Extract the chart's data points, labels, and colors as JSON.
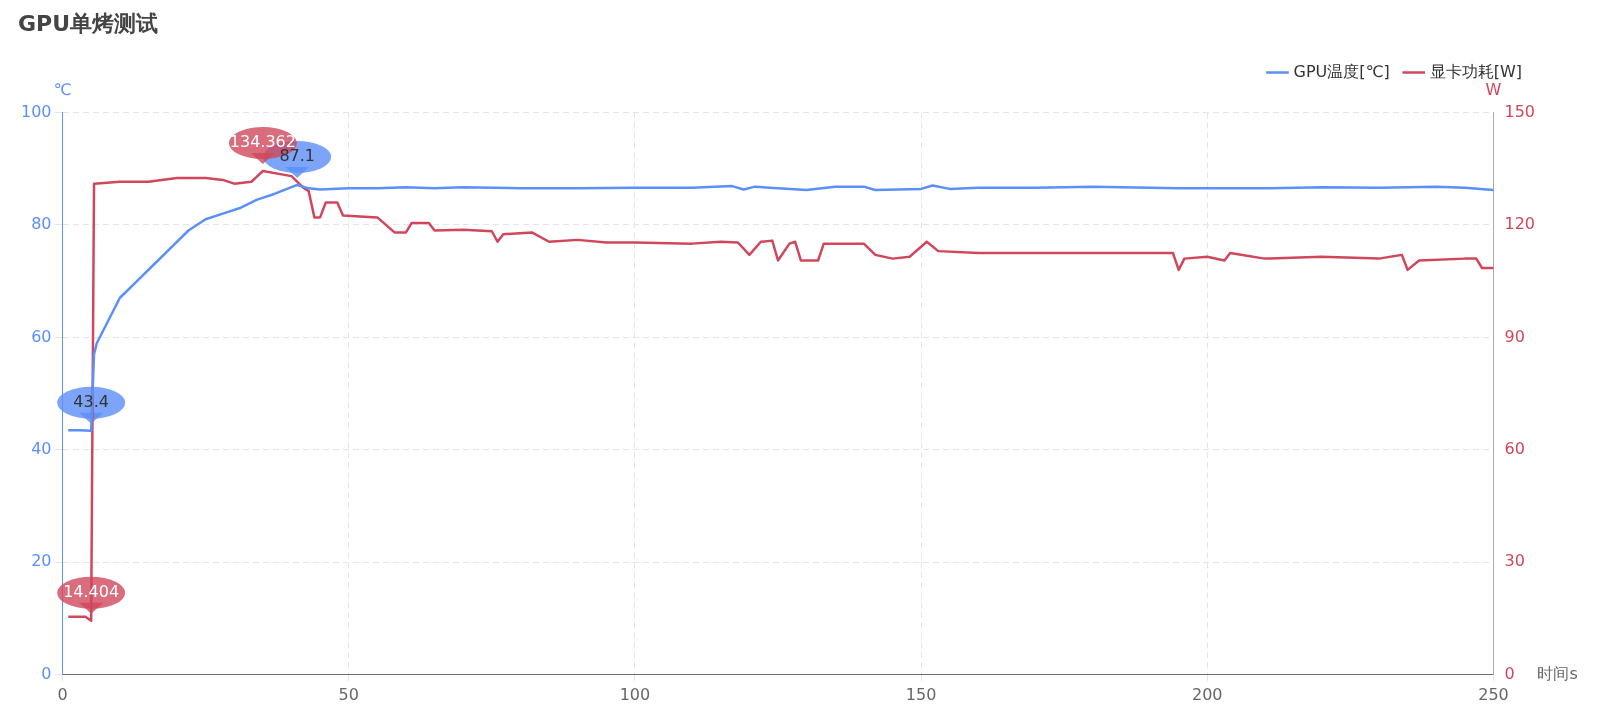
{
  "chart_data": {
    "type": "line",
    "title": "GPU单烤测试",
    "xlabel": "时间s",
    "ylabel": "℃",
    "y2label": "W",
    "xlim": [
      0,
      250
    ],
    "xticks": [
      0,
      50,
      100,
      150,
      200,
      250
    ],
    "ylim": [
      0,
      100
    ],
    "yticks": [
      0,
      20,
      40,
      60,
      80,
      100
    ],
    "y2lim": [
      0,
      150
    ],
    "y2ticks": [
      0,
      30,
      60,
      90,
      120,
      150
    ],
    "grid": true,
    "legend": "top right",
    "marker": "none",
    "line_style": "solid",
    "series": [
      {
        "name": "GPU温度[℃]",
        "color": "#5b8ff9",
        "x": [
          1,
          3,
          5,
          5.5,
          6,
          8,
          10,
          13,
          16,
          19,
          22,
          25,
          28,
          31,
          34,
          37,
          39,
          41,
          43,
          45,
          50,
          55,
          60,
          65,
          70,
          80,
          90,
          100,
          110,
          117,
          119,
          121,
          125,
          130,
          135,
          140,
          142,
          150,
          152,
          155,
          160,
          170,
          180,
          190,
          195,
          200,
          210,
          220,
          230,
          240,
          245,
          250
        ],
        "values": [
          43.5,
          43.5,
          43.4,
          57,
          59,
          63,
          67,
          70,
          73,
          76,
          79,
          81,
          82,
          83,
          84.5,
          85.5,
          86.3,
          87.1,
          86.5,
          86.3,
          86.5,
          86.5,
          86.7,
          86.5,
          86.7,
          86.5,
          86.5,
          86.6,
          86.6,
          86.9,
          86.3,
          86.8,
          86.5,
          86.2,
          86.8,
          86.8,
          86.2,
          86.4,
          87,
          86.4,
          86.6,
          86.6,
          86.8,
          86.6,
          86.5,
          86.5,
          86.5,
          86.7,
          86.6,
          86.8,
          86.6,
          86.2
        ],
        "value_labels": [
          null,
          null,
          "43.4",
          null,
          null,
          null,
          null,
          null,
          null,
          null,
          null,
          null,
          null,
          null,
          null,
          null,
          null,
          "87.1",
          null,
          null,
          null,
          null,
          null,
          null,
          null,
          null,
          null,
          null,
          null,
          null,
          null,
          null,
          null,
          null,
          null,
          null,
          null,
          null,
          null,
          null,
          null,
          null,
          null,
          null,
          null,
          null,
          null,
          null,
          null,
          null,
          null,
          null
        ]
      },
      {
        "name": "显卡功耗[W]",
        "color": "#d0475c",
        "axis": "y2",
        "x": [
          1,
          4,
          5,
          5.5,
          10,
          15,
          20,
          25,
          28,
          30,
          33,
          35,
          40,
          42,
          43,
          44,
          45,
          46,
          48,
          49,
          55,
          58,
          60,
          61,
          64,
          65,
          70,
          75,
          76,
          77,
          82,
          85,
          90,
          95,
          100,
          110,
          115,
          118,
          120,
          122,
          124,
          125,
          127,
          128,
          129,
          132,
          133,
          140,
          142,
          145,
          148,
          151,
          153,
          160,
          170,
          180,
          190,
          194,
          195,
          196,
          200,
          203,
          204,
          210,
          220,
          230,
          234,
          235,
          237,
          245,
          247,
          248,
          250
        ],
        "values": [
          15.5,
          15.5,
          14.404,
          131,
          131.5,
          131.5,
          132.5,
          132.5,
          132,
          131,
          131.5,
          134.362,
          133,
          130,
          129,
          122,
          122,
          126,
          126,
          122.5,
          122,
          118,
          118,
          120.5,
          120.5,
          118.5,
          118.7,
          118.3,
          115.5,
          117.5,
          118,
          115.5,
          116,
          115.3,
          115.3,
          115,
          115.5,
          115.3,
          112,
          115.5,
          115.8,
          110.5,
          115,
          115.5,
          110.5,
          110.5,
          115,
          115,
          112,
          111,
          111.5,
          115.5,
          113,
          112.5,
          112.5,
          112.5,
          112.5,
          112.5,
          108,
          111,
          111.5,
          110.5,
          112.5,
          111,
          111.5,
          111,
          112,
          108,
          110.5,
          111,
          111,
          108.5,
          108.5
        ],
        "value_labels": [
          null,
          null,
          "14.404",
          null,
          null,
          null,
          null,
          null,
          null,
          null,
          null,
          "134.362",
          null,
          null,
          null,
          null,
          null,
          null,
          null,
          null,
          null,
          null,
          null,
          null,
          null,
          null,
          null,
          null,
          null,
          null,
          null,
          null,
          null,
          null,
          null,
          null,
          null,
          null,
          null,
          null,
          null,
          null,
          null,
          null,
          null,
          null,
          null,
          null,
          null,
          null,
          null,
          null,
          null,
          null,
          null,
          null,
          null,
          null,
          null,
          null,
          null,
          null,
          null,
          null,
          null,
          null,
          null,
          null,
          null,
          null,
          null,
          null,
          null
        ]
      }
    ]
  }
}
